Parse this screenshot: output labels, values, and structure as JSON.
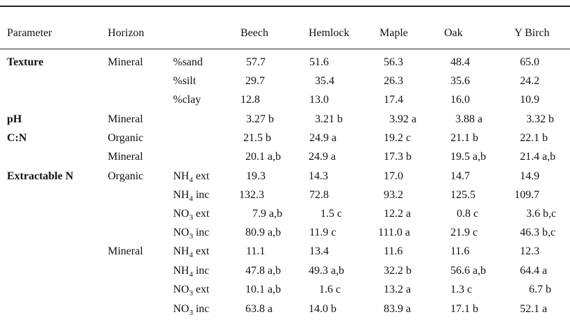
{
  "columns": [
    "Parameter",
    "Horizon",
    "Beech",
    "Hemlock",
    "Maple",
    "Oak",
    "Y Birch"
  ],
  "rows": [
    {
      "parameter": "Texture",
      "horizon": "Mineral",
      "measure": {
        "base": "%sand",
        "sub": "",
        "suffix": ""
      },
      "values": [
        "57.7",
        "51.6",
        "56.3",
        "48.4",
        "65.0"
      ]
    },
    {
      "parameter": "",
      "horizon": "",
      "measure": {
        "base": "%silt",
        "sub": "",
        "suffix": ""
      },
      "values": [
        "29.7",
        "35.4",
        "26.3",
        "35.6",
        "24.2"
      ]
    },
    {
      "parameter": "",
      "horizon": "",
      "measure": {
        "base": "%clay",
        "sub": "",
        "suffix": ""
      },
      "values": [
        "12.8",
        "13.0",
        "17.4",
        "16.0",
        "10.9"
      ]
    },
    {
      "parameter": "pH",
      "horizon": "Mineral",
      "measure": {
        "base": "",
        "sub": "",
        "suffix": ""
      },
      "values": [
        "3.27 b",
        "3.21 b",
        "3.92 a",
        "3.88 a",
        "3.32 b"
      ]
    },
    {
      "parameter": "C:N",
      "horizon": "Organic",
      "measure": {
        "base": "",
        "sub": "",
        "suffix": ""
      },
      "values": [
        "21.5 b",
        "24.9 a",
        "19.2 c",
        "21.1 b",
        "22.1 b"
      ]
    },
    {
      "parameter": "",
      "horizon": "Mineral",
      "measure": {
        "base": "",
        "sub": "",
        "suffix": ""
      },
      "values": [
        "20.1 a,b",
        "24.9 a",
        "17.3 b",
        "19.5 a,b",
        "21.4 a,b"
      ]
    },
    {
      "parameter": "Extractable N",
      "horizon": "Organic",
      "measure": {
        "base": "NH",
        "sub": "4",
        "suffix": " ext"
      },
      "values": [
        "19.3",
        "14.3",
        "17.0",
        "14.7",
        "14.9"
      ]
    },
    {
      "parameter": "",
      "horizon": "",
      "measure": {
        "base": "NH",
        "sub": "4",
        "suffix": " inc"
      },
      "values": [
        "132.3",
        "72.8",
        "93.2",
        "125.5",
        "109.7"
      ]
    },
    {
      "parameter": "",
      "horizon": "",
      "measure": {
        "base": "NO",
        "sub": "3",
        "suffix": " ext"
      },
      "values": [
        "7.9 a,b",
        "1.5 c",
        "12.2 a",
        "0.8 c",
        "3.6 b,c"
      ]
    },
    {
      "parameter": "",
      "horizon": "",
      "measure": {
        "base": "NO",
        "sub": "3",
        "suffix": " inc"
      },
      "values": [
        "80.9 a,b",
        "11.9 c",
        "111.0 a",
        "21.9 c",
        "46.3 b,c"
      ]
    },
    {
      "parameter": "",
      "horizon": "Mineral",
      "measure": {
        "base": "NH",
        "sub": "4",
        "suffix": " ext"
      },
      "values": [
        "11.1",
        "13.4",
        "11.6",
        "11.6",
        "12.3"
      ]
    },
    {
      "parameter": "",
      "horizon": "",
      "measure": {
        "base": "NH",
        "sub": "4",
        "suffix": " inc"
      },
      "values": [
        "47.8 a,b",
        "49.3 a,b",
        "32.2 b",
        "56.6 a,b",
        "64.4 a"
      ]
    },
    {
      "parameter": "",
      "horizon": "",
      "measure": {
        "base": "NO",
        "sub": "3",
        "suffix": " ext"
      },
      "values": [
        "10.1 a,b",
        "1.6 c",
        "13.2 a",
        "1.3 c",
        "6.7 b"
      ]
    },
    {
      "parameter": "",
      "horizon": "",
      "measure": {
        "base": "NO",
        "sub": "3",
        "suffix": " inc"
      },
      "values": [
        "63.8 a",
        "14.0 b",
        "83.9 a",
        "17.1 b",
        "52.1 a"
      ]
    }
  ]
}
